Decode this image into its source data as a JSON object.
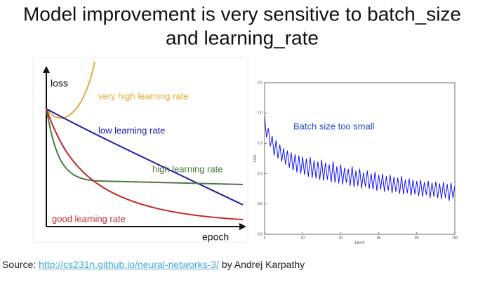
{
  "title_lines": [
    "Model improvement is very sensitive to batch_size",
    "and learning_rate"
  ],
  "diagram": {
    "y_label": "loss",
    "x_label": "epoch",
    "curves": [
      {
        "label": "very high learning rate",
        "color": "#e8a838"
      },
      {
        "label": "low learning rate",
        "color": "#1c1ca8"
      },
      {
        "label": "high learning rate",
        "color": "#4b7b3b"
      },
      {
        "label": "good learning rate",
        "color": "#c2282b"
      }
    ]
  },
  "chart_data": {
    "type": "line",
    "annotation": "Batch size too small",
    "xlabel": "Epoch",
    "ylabel": "Loss",
    "x": [
      0,
      1,
      2,
      3,
      4,
      5,
      6,
      7,
      8,
      9,
      10,
      11,
      12,
      13,
      14,
      15,
      16,
      17,
      18,
      19,
      20,
      21,
      22,
      23,
      24,
      25,
      26,
      27,
      28,
      29,
      30,
      31,
      32,
      33,
      34,
      35,
      36,
      37,
      38,
      39,
      40,
      41,
      42,
      43,
      44,
      45,
      46,
      47,
      48,
      49,
      50,
      51,
      52,
      53,
      54,
      55,
      56,
      57,
      58,
      59,
      60,
      61,
      62,
      63,
      64,
      65,
      66,
      67,
      68,
      69,
      70,
      71,
      72,
      73,
      74,
      75,
      76,
      77,
      78,
      79,
      80,
      81,
      82,
      83,
      84,
      85,
      86,
      87,
      88,
      89,
      90,
      91,
      92,
      93,
      94,
      95,
      96,
      97,
      98,
      99,
      100
    ],
    "series": [
      {
        "color": "#0000ff",
        "values": [
          1.95,
          1.6,
          1.75,
          1.45,
          1.62,
          1.3,
          1.55,
          1.25,
          1.48,
          1.2,
          1.42,
          1.15,
          1.38,
          1.1,
          1.35,
          1.05,
          1.32,
          1.02,
          1.3,
          1.0,
          1.28,
          0.98,
          1.25,
          0.95,
          1.27,
          0.93,
          1.22,
          0.92,
          1.2,
          0.9,
          1.23,
          0.88,
          1.18,
          0.9,
          1.15,
          0.86,
          1.2,
          0.85,
          1.12,
          0.84,
          1.15,
          0.82,
          1.1,
          0.85,
          1.08,
          0.8,
          1.12,
          0.78,
          1.05,
          0.8,
          1.08,
          0.76,
          1.02,
          0.78,
          1.05,
          0.75,
          1.0,
          0.74,
          1.03,
          0.72,
          0.98,
          0.74,
          1.0,
          0.7,
          0.96,
          0.72,
          0.98,
          0.68,
          0.95,
          0.7,
          0.93,
          0.67,
          0.96,
          0.66,
          0.9,
          0.68,
          0.92,
          0.64,
          0.9,
          0.66,
          0.88,
          0.63,
          0.9,
          0.62,
          0.86,
          0.65,
          0.88,
          0.6,
          0.85,
          0.62,
          0.87,
          0.6,
          0.84,
          0.58,
          0.86,
          0.6,
          0.83,
          0.55,
          0.85,
          0.6,
          0.8
        ]
      }
    ],
    "xlim": [
      0,
      100
    ],
    "ylim": [
      0,
      2.5
    ],
    "xticks": [
      0,
      20,
      40,
      60,
      80,
      100
    ],
    "yticks": [
      {
        "value": 0,
        "label": "0.0"
      },
      0.5,
      {
        "value": 1,
        "label": "1.0"
      },
      1.5,
      {
        "value": 2,
        "label": "2.0"
      },
      2.5
    ]
  },
  "source": {
    "prefix": "Source: ",
    "link": "http://cs231n.github.io/neural-networks-3/",
    "suffix": " by Andrej Karpathy"
  }
}
